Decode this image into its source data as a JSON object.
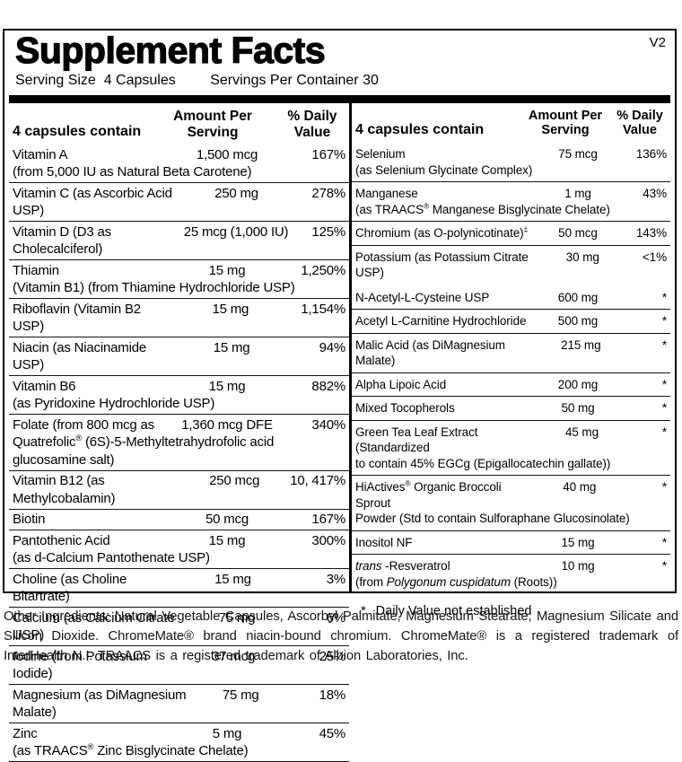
{
  "label": {
    "title": "Supplement Facts",
    "version": "V2",
    "serving_line": {
      "size": "Serving Size  4 Capsules",
      "per_container": "Servings Per Container 30"
    }
  },
  "table_header": {
    "contain": "4 capsules contain",
    "amount": "Amount Per\nServing",
    "daily": "% Daily\nValue"
  },
  "left_column": {
    "rows": [
      {
        "name": "Vitamin A",
        "amount": "1,500 mcg",
        "dv": "167%",
        "sub": "(from 5,000 IU as Natural Beta Carotene)"
      },
      {
        "name": "Vitamin C (as Ascorbic Acid USP)",
        "amount": "250 mg",
        "dv": "278%"
      },
      {
        "name": "Vitamin D (D3 as Cholecalciferol)",
        "amount": "25 mcg (1,000 IU)",
        "dv": "125%"
      },
      {
        "name": "Thiamin",
        "amount": "15 mg",
        "dv": "1,250%",
        "sub": "(Vitamin B1) (from Thiamine Hydrochloride USP)"
      },
      {
        "name": "Riboflavin (Vitamin B2 USP)",
        "amount": "15 mg",
        "dv": "1,154%"
      },
      {
        "name": "Niacin (as Niacinamide USP)",
        "amount": "15 mg",
        "dv": "94%"
      },
      {
        "name": "Vitamin B6",
        "amount": "15 mg",
        "dv": "882%",
        "sub": "(as Pyridoxine Hydrochloride USP)"
      },
      {
        "name": "Folate (from 800 mcg as",
        "amount": "1,360 mcg DFE",
        "dv": "340%",
        "sub": [
          {
            "t": "Quatrefolic"
          },
          {
            "t": "®",
            "sup": true
          },
          {
            "t": " (6S)-5-Methyltetrahydrofolic acid glucosamine salt)"
          }
        ]
      },
      {
        "name": "Vitamin B12 (as Methylcobalamin)",
        "amount": "250 mcg",
        "dv": "10, 417%"
      },
      {
        "name": "Biotin",
        "amount": "50 mcg",
        "dv": "167%"
      },
      {
        "name": "Pantothenic Acid",
        "amount": "15 mg",
        "dv": "300%",
        "sub": "(as d-Calcium Pantothenate USP)"
      },
      {
        "name": "Choline (as Choline Bitartrate)",
        "amount": "15 mg",
        "dv": "3%"
      },
      {
        "name": "Calcium (as Calcium Citrate USP)",
        "amount": "75 mg",
        "dv": "6%"
      },
      {
        "name": "Iodine (from Potassium Iodide)",
        "amount": "37 mcg",
        "dv": "25%"
      },
      {
        "name": "Magnesium (as DiMagnesium Malate)",
        "amount": "75 mg",
        "dv": "18%"
      },
      {
        "name": "Zinc",
        "amount": "5 mg",
        "dv": "45%",
        "sub": [
          {
            "t": "(as TRAACS"
          },
          {
            "t": "®",
            "sup": true
          },
          {
            "t": " Zinc Bisglycinate Chelate)"
          }
        ]
      }
    ]
  },
  "right_column": {
    "section1": [
      {
        "name": "Selenium",
        "amount": "75 mcg",
        "dv": "136%",
        "sub": "(as Selenium Glycinate Complex)"
      },
      {
        "name": "Manganese",
        "amount": "1 mg",
        "dv": "43%",
        "sub": [
          {
            "t": "(as TRAACS"
          },
          {
            "t": "®",
            "sup": true
          },
          {
            "t": " Manganese Bisglycinate Chelate)"
          }
        ]
      },
      {
        "name": [
          {
            "t": "Chromium (as O-polynicotinate)"
          },
          {
            "t": "‡",
            "sup": true
          }
        ],
        "amount": "50 mcg",
        "dv": "143%"
      },
      {
        "name": "Potassium (as Potassium Citrate USP)",
        "amount": "30 mg",
        "dv": "<1%"
      }
    ],
    "section2": [
      {
        "name": "N-Acetyl-L-Cysteine USP",
        "amount": "600 mg",
        "dv": "*"
      },
      {
        "name": "Acetyl L-Carnitine Hydrochloride",
        "amount": "500 mg",
        "dv": "*"
      },
      {
        "name": "Malic Acid (as DiMagnesium Malate)",
        "amount": "215 mg",
        "dv": "*"
      },
      {
        "name": "Alpha Lipoic Acid",
        "amount": "200 mg",
        "dv": "*"
      },
      {
        "name": "Mixed Tocopherols",
        "amount": "50 mg",
        "dv": "*"
      },
      {
        "name": "Green Tea Leaf Extract (Standardized",
        "amount": "45 mg",
        "dv": "*",
        "sub": "to contain 45% EGCg (Epigallocatechin gallate))"
      },
      {
        "name": [
          {
            "t": "HiActives"
          },
          {
            "t": "®",
            "sup": true
          },
          {
            "t": " Organic Broccoli Sprout"
          }
        ],
        "amount": "40 mg",
        "dv": "*",
        "sub": "Powder (Std to contain Sulforaphane Glucosinolate)"
      },
      {
        "name": "Inositol NF",
        "amount": "15 mg",
        "dv": "*"
      },
      {
        "name": [
          {
            "t": "trans ",
            "i": true
          },
          {
            "t": "-Resveratrol"
          }
        ],
        "amount": "10 mg",
        "dv": "*",
        "sub": [
          {
            "t": "(from "
          },
          {
            "t": "Polygonum cuspidatum",
            "i": true
          },
          {
            "t": " (Roots))"
          }
        ]
      }
    ],
    "footnote": {
      "symbol": "*",
      "text": "Daily Value not established"
    }
  },
  "footer": {
    "other_ingredients": "Other Ingredients: Natural Vegetable Capsules, Ascorbyl Palmitate, Magnesium Stearate, Magnesium Silicate and Silicon Dioxide. ChromeMate® brand niacin-bound chromium. ChromeMate® is a registered trademark of InterHealth N.I. TRAACS is a registered trademark of Albion Laboratories, Inc."
  }
}
